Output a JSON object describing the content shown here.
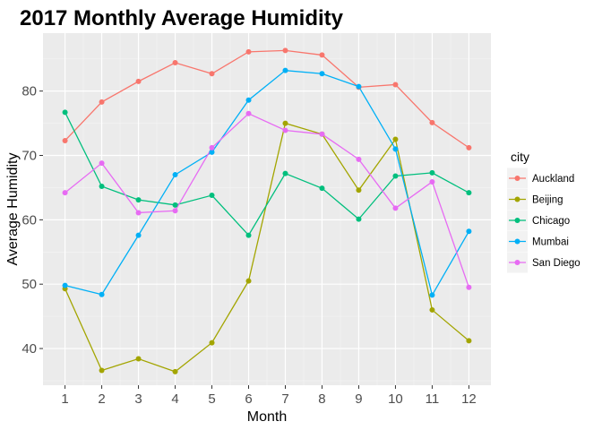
{
  "chart_data": {
    "type": "line",
    "title": "2017 Monthly Average Humidity",
    "xlabel": "Month",
    "ylabel": "Average Humidity",
    "x": [
      1,
      2,
      3,
      4,
      5,
      6,
      7,
      8,
      9,
      10,
      11,
      12
    ],
    "xlim": [
      0.4,
      12.6
    ],
    "ylim": [
      34.3,
      89.0
    ],
    "yticks": [
      40,
      50,
      60,
      70,
      80
    ],
    "grid": true,
    "legend_title": "city",
    "legend_position": "right",
    "series": [
      {
        "name": "Auckland",
        "color": "#F8766D",
        "values": [
          72.3,
          78.3,
          81.5,
          84.4,
          82.7,
          86.1,
          86.3,
          85.6,
          80.6,
          81.0,
          75.1,
          71.2
        ]
      },
      {
        "name": "Beijing",
        "color": "#A3A500",
        "values": [
          49.3,
          36.6,
          38.4,
          36.4,
          40.9,
          50.5,
          75.0,
          73.3,
          64.6,
          72.5,
          46.0,
          41.2
        ]
      },
      {
        "name": "Chicago",
        "color": "#00BF7D",
        "values": [
          76.7,
          65.2,
          63.1,
          62.3,
          63.8,
          57.6,
          67.2,
          64.9,
          60.1,
          66.8,
          67.3,
          64.2
        ]
      },
      {
        "name": "Mumbai",
        "color": "#00B0F6",
        "values": [
          49.8,
          48.4,
          57.6,
          67.0,
          70.5,
          78.6,
          83.2,
          82.7,
          80.7,
          71.0,
          48.3,
          58.2
        ]
      },
      {
        "name": "San Diego",
        "color": "#E76BF3",
        "values": [
          64.2,
          68.8,
          61.1,
          61.4,
          71.2,
          76.5,
          73.9,
          73.3,
          69.4,
          61.8,
          65.9,
          49.5
        ]
      }
    ]
  }
}
